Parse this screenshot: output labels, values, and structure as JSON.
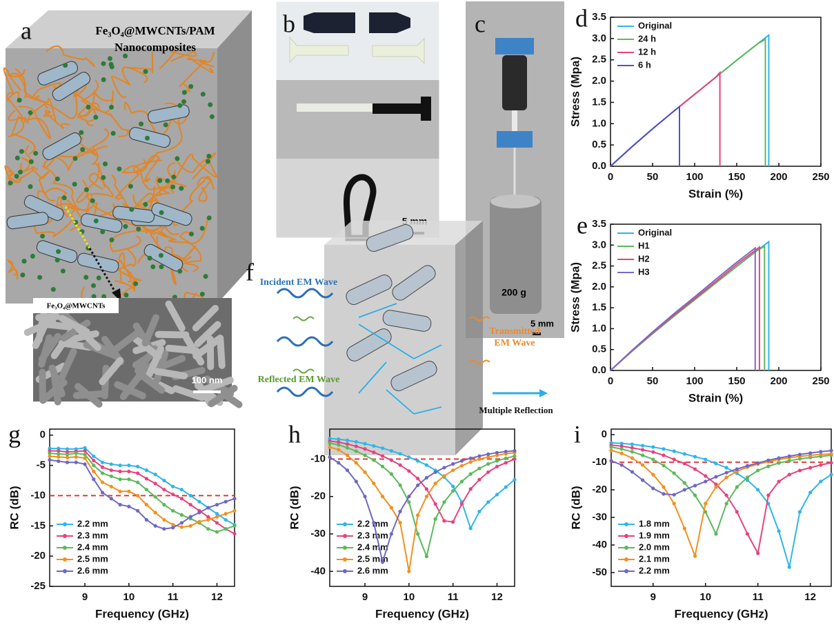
{
  "panels": {
    "a": {
      "label": "a",
      "title": [
        "Fe₃O₄@MWCNTs/PAM",
        "Nanocomposites"
      ],
      "inset_label": "Fe₃O₄@MWCNTs",
      "scale_bar": "100 nm"
    },
    "b": {
      "label": "b",
      "scale_bar": "5 mm"
    },
    "c": {
      "label": "c",
      "weight": "200 g",
      "scale_bar": "5 mm"
    },
    "f": {
      "label": "f",
      "incident": "Incident EM Wave",
      "reflected": "Reflected EM Wave",
      "transmitted": [
        "Transmitted",
        "EM Wave"
      ],
      "arrow_label": "Multiple Reflection"
    }
  },
  "chart_data": [
    {
      "type": "line",
      "panel_label": "d",
      "xlabel": "Strain (%)",
      "ylabel": "Stress (Mpa)",
      "xlim": [
        0,
        250
      ],
      "xticks": [
        0,
        50,
        100,
        150,
        200,
        250
      ],
      "ylim": [
        0,
        3.5
      ],
      "yticks": [
        {
          "value": 0,
          "label": "0.0"
        },
        0.5,
        {
          "value": 1,
          "label": "1.0"
        },
        1.5,
        {
          "value": 2,
          "label": "2.0"
        },
        2.5,
        {
          "value": 3,
          "label": "3.0"
        },
        3.5
      ],
      "legend": "upper left",
      "markers": false,
      "series": [
        {
          "name": "Original",
          "color": "#2fb5ea",
          "x": [
            0,
            25,
            50,
            75,
            100,
            125,
            150,
            175,
            188,
            188
          ],
          "values": [
            0,
            0.45,
            0.88,
            1.29,
            1.69,
            2.09,
            2.49,
            2.88,
            3.08,
            0
          ]
        },
        {
          "name": "24 h",
          "color": "#5cb85c",
          "x": [
            0,
            25,
            50,
            75,
            100,
            125,
            150,
            175,
            184,
            184
          ],
          "values": [
            0,
            0.45,
            0.88,
            1.29,
            1.69,
            2.09,
            2.49,
            2.88,
            2.98,
            0
          ]
        },
        {
          "name": "12 h",
          "color": "#e8417e",
          "x": [
            0,
            25,
            50,
            75,
            100,
            125,
            130,
            130
          ],
          "values": [
            0,
            0.45,
            0.88,
            1.29,
            1.69,
            2.09,
            2.2,
            0
          ]
        },
        {
          "name": "6 h",
          "color": "#4b52c8",
          "x": [
            0,
            25,
            50,
            75,
            82,
            82
          ],
          "values": [
            0,
            0.45,
            0.88,
            1.29,
            1.4,
            0
          ]
        }
      ]
    },
    {
      "type": "line",
      "panel_label": "e",
      "xlabel": "Strain (%)",
      "ylabel": "Stress (Mpa)",
      "xlim": [
        0,
        250
      ],
      "xticks": [
        0,
        50,
        100,
        150,
        200,
        250
      ],
      "ylim": [
        0,
        3.5
      ],
      "yticks": [
        {
          "value": 0,
          "label": "0.0"
        },
        0.5,
        {
          "value": 1,
          "label": "1.0"
        },
        1.5,
        {
          "value": 2,
          "label": "2.0"
        },
        2.5,
        {
          "value": 3,
          "label": "3.0"
        },
        3.5
      ],
      "legend": "upper left",
      "markers": false,
      "series": [
        {
          "name": "Original",
          "color": "#2fb5ea",
          "x": [
            0,
            25,
            50,
            75,
            100,
            125,
            150,
            175,
            188,
            188
          ],
          "values": [
            0,
            0.45,
            0.88,
            1.29,
            1.69,
            2.09,
            2.49,
            2.88,
            3.08,
            0
          ]
        },
        {
          "name": "H1",
          "color": "#5cb85c",
          "x": [
            0,
            25,
            50,
            75,
            100,
            125,
            150,
            175,
            183,
            183
          ],
          "values": [
            0,
            0.45,
            0.88,
            1.29,
            1.69,
            2.09,
            2.49,
            2.88,
            2.97,
            0
          ]
        },
        {
          "name": "H2",
          "color": "#e8417e",
          "x": [
            0,
            25,
            50,
            75,
            100,
            125,
            150,
            177,
            177
          ],
          "values": [
            0,
            0.46,
            0.9,
            1.32,
            1.72,
            2.13,
            2.54,
            2.95,
            0
          ]
        },
        {
          "name": "H3",
          "color": "#7b68c8",
          "x": [
            0,
            25,
            50,
            75,
            100,
            125,
            150,
            172,
            172
          ],
          "values": [
            0,
            0.47,
            0.92,
            1.35,
            1.76,
            2.18,
            2.59,
            2.93,
            0
          ]
        }
      ]
    },
    {
      "type": "line",
      "panel_label": "g",
      "xlabel": "Frequency (GHz)",
      "ylabel": "RC (dB)",
      "x": [
        8.2,
        8.4,
        8.6,
        8.8,
        9.0,
        9.2,
        9.4,
        9.6,
        9.8,
        10.0,
        10.2,
        10.4,
        10.6,
        10.8,
        11.0,
        11.2,
        11.4,
        11.6,
        11.8,
        12.0,
        12.2,
        12.4
      ],
      "xlim": [
        8.2,
        12.4
      ],
      "xticks": [
        9,
        10,
        11,
        12
      ],
      "ylim": [
        -25,
        1
      ],
      "yticks": [
        0,
        -5,
        -10,
        -15,
        -20,
        -25
      ],
      "ref_line": {
        "value": -10,
        "color": "#e8262a"
      },
      "legend": "lower left",
      "markers": true,
      "series": [
        {
          "name": "2.2 mm",
          "color": "#2fb5ea",
          "values": [
            -2.2,
            -2.2,
            -2.3,
            -2.3,
            -2.1,
            -3.5,
            -4.5,
            -4.8,
            -5.0,
            -5.0,
            -5.2,
            -5.8,
            -6.5,
            -7.5,
            -8.5,
            -9.0,
            -10,
            -11,
            -12,
            -13,
            -14,
            -14.8
          ]
        },
        {
          "name": "2.3 mm",
          "color": "#e8417e",
          "values": [
            -2.6,
            -2.6,
            -2.8,
            -2.7,
            -2.6,
            -4.2,
            -5.3,
            -5.8,
            -6.0,
            -6.0,
            -6.3,
            -7.2,
            -8.0,
            -9.0,
            -9.8,
            -10.5,
            -11.5,
            -12.5,
            -13.5,
            -14.5,
            -15.5,
            -16.3
          ]
        },
        {
          "name": "2.4 mm",
          "color": "#5cb85c",
          "values": [
            -3,
            -3.1,
            -3.2,
            -3.0,
            -3.2,
            -5.0,
            -6.3,
            -6.8,
            -7.3,
            -7.3,
            -7.8,
            -9.0,
            -10.2,
            -11.5,
            -12.5,
            -13.2,
            -13.8,
            -14.5,
            -15.5,
            -16,
            -15.5,
            -15
          ]
        },
        {
          "name": "2.5 mm",
          "color": "#f0901e",
          "values": [
            -3.5,
            -3.6,
            -3.7,
            -3.6,
            -3.8,
            -6.0,
            -7.8,
            -8.5,
            -9.3,
            -9.3,
            -10,
            -11.5,
            -12.8,
            -14,
            -14.8,
            -15.2,
            -15,
            -14.3,
            -14,
            -13.5,
            -13,
            -12.5
          ]
        },
        {
          "name": "2.6 mm",
          "color": "#6f67c4",
          "values": [
            -4.1,
            -4.3,
            -4.5,
            -4.5,
            -4.8,
            -7.3,
            -9.5,
            -10.5,
            -11.5,
            -11.8,
            -12.5,
            -14,
            -15,
            -15.5,
            -15.3,
            -14.5,
            -13.5,
            -12.8,
            -12,
            -11.5,
            -11,
            -10.5
          ]
        }
      ]
    },
    {
      "type": "line",
      "panel_label": "h",
      "xlabel": "Frequency (GHz)",
      "ylabel": "RC (dB)",
      "x": [
        8.2,
        8.4,
        8.6,
        8.8,
        9.0,
        9.2,
        9.4,
        9.6,
        9.8,
        10.0,
        10.2,
        10.4,
        10.6,
        10.8,
        11.0,
        11.2,
        11.4,
        11.6,
        11.8,
        12.0,
        12.2,
        12.4
      ],
      "xlim": [
        8.2,
        12.4
      ],
      "xticks": [
        9,
        10,
        11,
        12
      ],
      "ylim": [
        -44,
        -2
      ],
      "yticks": [
        -10,
        -20,
        -30,
        -40
      ],
      "ref_line": {
        "value": -10,
        "color": "#e8262a"
      },
      "legend": "lower left",
      "markers": true,
      "series": [
        {
          "name": "2.2 mm",
          "color": "#2fb5ea",
          "values": [
            -4.5,
            -4.7,
            -5,
            -5.4,
            -5.9,
            -6.5,
            -7.1,
            -7.8,
            -8.6,
            -9.5,
            -10.5,
            -11.6,
            -13,
            -14.8,
            -17.3,
            -21.5,
            -28.5,
            -24,
            -21.5,
            -19.5,
            -17.5,
            -15.5
          ]
        },
        {
          "name": "2.3 mm",
          "color": "#e8417e",
          "values": [
            -5.2,
            -5.5,
            -6,
            -6.6,
            -7.3,
            -8.2,
            -9.2,
            -10.3,
            -11.6,
            -13.2,
            -15.2,
            -18,
            -22,
            -26.5,
            -26.8,
            -22,
            -18,
            -15.5,
            -13.5,
            -12,
            -11,
            -10
          ]
        },
        {
          "name": "2.4 mm",
          "color": "#5cb85c",
          "values": [
            -5.8,
            -6.2,
            -7,
            -7.9,
            -9,
            -10.3,
            -12,
            -14,
            -17,
            -21.5,
            -30,
            -36,
            -26,
            -21.5,
            -18.5,
            -16,
            -14,
            -12.5,
            -11.3,
            -10.5,
            -9.8,
            -9.2
          ]
        },
        {
          "name": "2.5 mm",
          "color": "#f0901e",
          "values": [
            -6.8,
            -7.5,
            -9,
            -11,
            -13.5,
            -16.5,
            -20,
            -23,
            -27,
            -40,
            -25,
            -20,
            -16.5,
            -14.5,
            -13,
            -11.8,
            -10.8,
            -10,
            -9.5,
            -9,
            -8.6,
            -8.3
          ]
        },
        {
          "name": "2.6 mm",
          "color": "#6f67c4",
          "values": [
            -9.5,
            -11,
            -13,
            -16,
            -20,
            -27,
            -37.5,
            -30,
            -24,
            -20,
            -17,
            -15,
            -13.5,
            -12.3,
            -11.3,
            -10.5,
            -9.8,
            -9.2,
            -8.7,
            -8.3,
            -8,
            -7.8
          ]
        }
      ]
    },
    {
      "type": "line",
      "panel_label": "i",
      "xlabel": "Frequency (GHz)",
      "ylabel": "RC (dB)",
      "x": [
        8.2,
        8.4,
        8.6,
        8.8,
        9.0,
        9.2,
        9.4,
        9.6,
        9.8,
        10.0,
        10.2,
        10.4,
        10.6,
        10.8,
        11.0,
        11.2,
        11.4,
        11.6,
        11.8,
        12.0,
        12.2,
        12.4
      ],
      "xlim": [
        8.2,
        12.4
      ],
      "xticks": [
        9,
        10,
        11,
        12
      ],
      "ylim": [
        -55,
        2
      ],
      "yticks": [
        0,
        -10,
        -20,
        -30,
        -40,
        -50
      ],
      "ref_line": {
        "value": -10,
        "color": "#e8262a"
      },
      "legend": "lower left",
      "markers": true,
      "series": [
        {
          "name": "1.8 mm",
          "color": "#2fb5ea",
          "values": [
            -3,
            -3.2,
            -3.5,
            -4,
            -4.5,
            -5.2,
            -6,
            -7,
            -8,
            -9,
            -10.5,
            -12,
            -14,
            -16.5,
            -20,
            -25,
            -35,
            -48,
            -28,
            -21,
            -17,
            -14.5
          ]
        },
        {
          "name": "1.9 mm",
          "color": "#e8417e",
          "values": [
            -3.8,
            -4.2,
            -4.8,
            -5.5,
            -6.3,
            -7.5,
            -9,
            -10.5,
            -12.5,
            -15,
            -18,
            -22,
            -28,
            -36,
            -43,
            -22,
            -17,
            -14.5,
            -13,
            -12,
            -11,
            -10.2
          ]
        },
        {
          "name": "2.0 mm",
          "color": "#5cb85c",
          "values": [
            -4.5,
            -5.2,
            -6.2,
            -7.5,
            -9,
            -11.2,
            -14,
            -17.5,
            -22,
            -28,
            -36,
            -25,
            -19,
            -15.5,
            -13,
            -11.5,
            -10.3,
            -9.5,
            -8.8,
            -8.3,
            -7.9,
            -7.5
          ]
        },
        {
          "name": "2.1 mm",
          "color": "#f0901e",
          "values": [
            -5.7,
            -6.8,
            -8.5,
            -11,
            -14.5,
            -19,
            -25,
            -34,
            -44,
            -25,
            -19,
            -15.5,
            -13.3,
            -11.8,
            -10.7,
            -9.8,
            -9,
            -8.4,
            -7.9,
            -7.5,
            -7.2,
            -7
          ]
        },
        {
          "name": "2.2 mm",
          "color": "#6f67c4",
          "values": [
            -9.5,
            -11,
            -13.5,
            -16.5,
            -19.5,
            -21.5,
            -21.8,
            -20,
            -18.5,
            -17,
            -15.3,
            -13.8,
            -12.5,
            -11.3,
            -10.3,
            -9.3,
            -8.5,
            -7.8,
            -7.2,
            -6.7,
            -6.2,
            -5.8
          ]
        }
      ]
    }
  ]
}
